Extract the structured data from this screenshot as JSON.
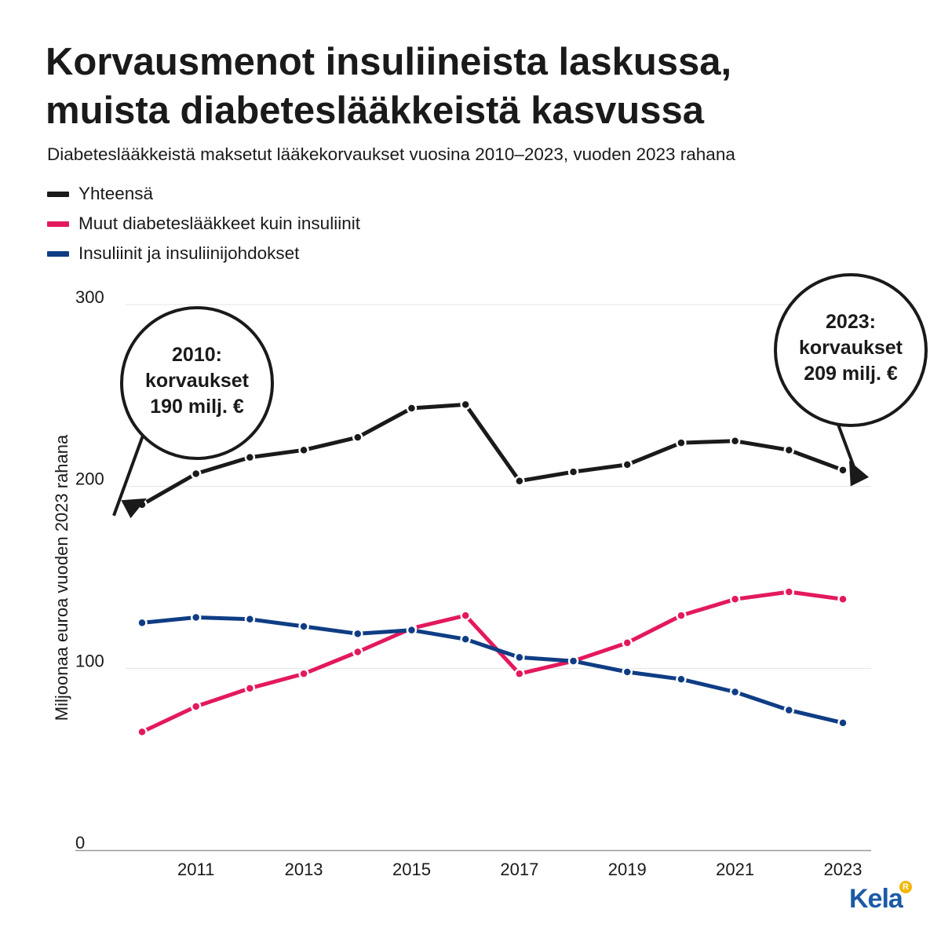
{
  "chart_data": {
    "type": "line",
    "title_lines": [
      "Korvausmenot insuliineista laskussa,",
      "muista diabeteslääkkeistä kasvussa"
    ],
    "subtitle": "Diabeteslääkkeistä maksetut lääkekorvaukset vuosina 2010–2023, vuoden 2023 rahana",
    "ylabel": "Miljoonaa euroa vuoden 2023 rahana",
    "xlabel": "",
    "ylim": [
      0,
      300
    ],
    "yticks": [
      0,
      100,
      200,
      300
    ],
    "x": [
      2010,
      2011,
      2012,
      2013,
      2014,
      2015,
      2016,
      2017,
      2018,
      2019,
      2020,
      2021,
      2022,
      2023
    ],
    "xticks": [
      2011,
      2013,
      2015,
      2017,
      2019,
      2021,
      2023
    ],
    "grid": "horizontal",
    "legend_position": "top-left",
    "series": [
      {
        "name": "Yhteensä",
        "color": "#1a1a1a",
        "values": [
          190,
          207,
          216,
          220,
          227,
          243,
          245,
          203,
          208,
          212,
          224,
          225,
          220,
          209
        ]
      },
      {
        "name": "Muut diabeteslääkkeet kuin insuliinit",
        "color": "#e3195e",
        "values": [
          65,
          79,
          89,
          97,
          109,
          122,
          129,
          97,
          104,
          114,
          129,
          138,
          142,
          138
        ]
      },
      {
        "name": "Insuliinit ja insuliinijohdokset",
        "color": "#0f3d85",
        "values": [
          125,
          128,
          127,
          123,
          119,
          121,
          116,
          106,
          104,
          98,
          94,
          87,
          77,
          70
        ]
      }
    ],
    "annotations": [
      {
        "year": 2010,
        "series": 0,
        "lines": [
          "2010:",
          "korvaukset",
          "190 milj. €"
        ]
      },
      {
        "year": 2023,
        "series": 0,
        "lines": [
          "2023:",
          "korvaukset",
          "209 milj. €"
        ]
      }
    ]
  },
  "branding": {
    "logo_text": "Kela",
    "badge_text": "R"
  }
}
